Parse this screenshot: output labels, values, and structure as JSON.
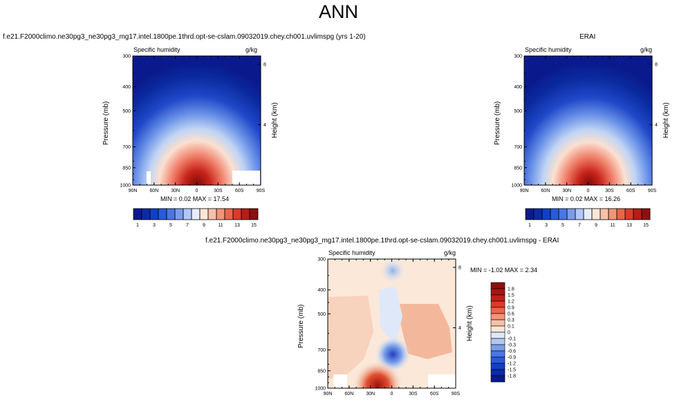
{
  "main_title": "ANN",
  "colors": {
    "lowest": "#0a1a8c",
    "zero": "#f8e0cc",
    "highest": "#8c1010"
  },
  "chart_data": [
    {
      "type": "heatmap",
      "title": "f.e21.F2000climo.ne30pg3_ne30pg3_mg17.intel.1800pe.1thrd.opt-se-cslam.09032019.chey.ch001.uvlimspg (yrs 1-20)",
      "field_label": "Specific humidity",
      "units": "g/kg",
      "ylabel": "Pressure (mb)",
      "ylabel_right": "Height (km)",
      "yticks": [
        "300",
        "400",
        "500",
        "700",
        "850",
        "1000"
      ],
      "yticks_right": [
        "8",
        "4"
      ],
      "xticks": [
        "90N",
        "60N",
        "30N",
        "0",
        "30S",
        "60S",
        "90S"
      ],
      "min": 0.02,
      "max": 17.54,
      "stats_text": "MIN =   0.02   MAX =  17.54",
      "colorbar_labels": [
        "1",
        "3",
        "5",
        "7",
        "9",
        "11",
        "13",
        "15"
      ]
    },
    {
      "type": "heatmap",
      "title": "ERAI",
      "field_label": "Specific humidity",
      "units": "g/kg",
      "ylabel": "Pressure (mb)",
      "ylabel_right": "Height (km)",
      "yticks": [
        "300",
        "400",
        "500",
        "700",
        "850",
        "1000"
      ],
      "yticks_right": [
        "8",
        "4"
      ],
      "xticks": [
        "90N",
        "60N",
        "30N",
        "0",
        "30S",
        "60S",
        "90S"
      ],
      "min": 0.02,
      "max": 16.26,
      "stats_text": "MIN =   0.02   MAX =  16.26",
      "colorbar_labels": [
        "1",
        "3",
        "5",
        "7",
        "9",
        "11",
        "13",
        "15"
      ]
    },
    {
      "type": "heatmap",
      "title": "f.e21.F2000climo.ne30pg3_ne30pg3_mg17.intel.1800pe.1thrd.opt-se-cslam.09032019.chey.ch001.uvlimspg - ERAI",
      "field_label": "Specific humidity",
      "units": "g/kg",
      "ylabel": "Pressure (mb)",
      "ylabel_right": "Height (km)",
      "yticks": [
        "300",
        "400",
        "500",
        "700",
        "850",
        "1000"
      ],
      "yticks_right": [
        "8",
        "4"
      ],
      "xticks": [
        "90N",
        "60N",
        "30N",
        "0",
        "30S",
        "60S",
        "90S"
      ],
      "min": -1.02,
      "max": 2.34,
      "stats_text": "MIN =  -1.02   MAX =   2.34",
      "colorbar_labels": [
        "1.8",
        "1.5",
        "1.2",
        "0.9",
        "0.6",
        "0.3",
        "0.1",
        "0",
        "-0.1",
        "-0.3",
        "-0.6",
        "-0.9",
        "-1.2",
        "-1.5",
        "-1.8"
      ]
    }
  ]
}
